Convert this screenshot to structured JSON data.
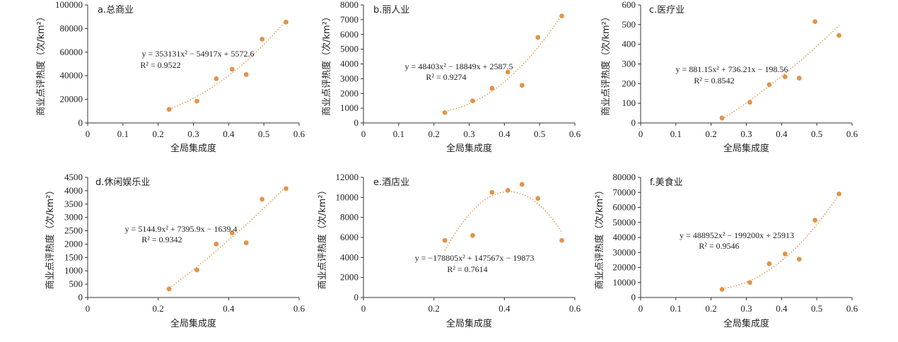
{
  "chart_data": [
    {
      "type": "scatter",
      "title": "a.总商业",
      "xlabel": "全局集成度",
      "ylabel": "商业点评热度（次/km²）",
      "xlim": [
        0,
        0.6
      ],
      "ylim": [
        0,
        100000
      ],
      "xticks": [
        0,
        0.1,
        0.2,
        0.3,
        0.4,
        0.5,
        0.6
      ],
      "xtick_labels": [
        "0",
        "0.1",
        "0.2",
        "0.3",
        "0.4",
        "0.5",
        "0.6"
      ],
      "yticks": [
        0,
        20000,
        40000,
        60000,
        80000,
        100000
      ],
      "ytick_labels": [
        "0",
        "20000",
        "40000",
        "60000",
        "80000",
        "100000"
      ],
      "x": [
        0.231,
        0.31,
        0.365,
        0.41,
        0.45,
        0.495,
        0.563
      ],
      "y": [
        11500,
        18500,
        37500,
        45500,
        41000,
        71000,
        85500
      ],
      "trendline": {
        "type": "poly2",
        "coef": [
          353131,
          -54917,
          5572.6
        ]
      },
      "equation": "y = 353131x² − 54917x + 5572.6",
      "r2_label": "R² = 0.9522"
    },
    {
      "type": "scatter",
      "title": "b.丽人业",
      "xlabel": "全局集成度",
      "ylabel": "商业点评热度（次/km²）",
      "xlim": [
        0,
        0.6
      ],
      "ylim": [
        0,
        8000
      ],
      "xticks": [
        0,
        0.1,
        0.2,
        0.3,
        0.4,
        0.5,
        0.6
      ],
      "xtick_labels": [
        "0",
        "0.1",
        "0.2",
        "0.3",
        "0.4",
        "0.5",
        "0.6"
      ],
      "yticks": [
        0,
        1000,
        2000,
        3000,
        4000,
        5000,
        6000,
        7000,
        8000
      ],
      "ytick_labels": [
        "0",
        "1000",
        "2000",
        "3000",
        "4000",
        "5000",
        "6000",
        "7000",
        "8000"
      ],
      "x": [
        0.231,
        0.31,
        0.365,
        0.41,
        0.45,
        0.495,
        0.563
      ],
      "y": [
        700,
        1500,
        2350,
        3450,
        2550,
        5800,
        7250
      ],
      "trendline": {
        "type": "poly2",
        "coef": [
          48403,
          -18849,
          2587.5
        ]
      },
      "equation": "y = 48403x² − 18849x + 2587.5",
      "r2_label": "R² = 0.9274"
    },
    {
      "type": "scatter",
      "title": "c.医疗业",
      "xlabel": "全局集成度",
      "ylabel": "商业点评热度（次/km²）",
      "xlim": [
        0,
        0.6
      ],
      "ylim": [
        0,
        600
      ],
      "xticks": [
        0,
        0.1,
        0.2,
        0.3,
        0.4,
        0.5,
        0.6
      ],
      "xtick_labels": [
        "0",
        "0.1",
        "0.2",
        "0.3",
        "0.4",
        "0.5",
        "0.6"
      ],
      "yticks": [
        0,
        100,
        200,
        300,
        400,
        500,
        600
      ],
      "ytick_labels": [
        "0",
        "100",
        "200",
        "300",
        "400",
        "500",
        "600"
      ],
      "x": [
        0.231,
        0.31,
        0.365,
        0.41,
        0.45,
        0.495,
        0.563
      ],
      "y": [
        25,
        105,
        195,
        235,
        228,
        515,
        445
      ],
      "trendline": {
        "type": "poly2",
        "coef": [
          881.15,
          736.21,
          -198.56
        ]
      },
      "equation": "y = 881.15x² + 736.21x − 198.56",
      "r2_label": "R² = 0.8542"
    },
    {
      "type": "scatter",
      "title": "d.休闲娱乐业",
      "xlabel": "全局集成度",
      "ylabel": "商业点评热度（次/km²）",
      "xlim": [
        0,
        0.6
      ],
      "ylim": [
        0,
        4500
      ],
      "xticks": [
        0,
        0.2,
        0.4,
        0.6
      ],
      "xtick_labels": [
        "0",
        "0.2",
        "0.4",
        "0.6"
      ],
      "yticks": [
        0,
        500,
        1000,
        1500,
        2000,
        2500,
        3000,
        3500,
        4000,
        4500
      ],
      "ytick_labels": [
        "0",
        "500",
        "1000",
        "1500",
        "2000",
        "2500",
        "3000",
        "3500",
        "4000",
        "4500"
      ],
      "x": [
        0.231,
        0.31,
        0.365,
        0.41,
        0.45,
        0.495,
        0.563
      ],
      "y": [
        320,
        1030,
        2000,
        2420,
        2050,
        3680,
        4080
      ],
      "trendline": {
        "type": "poly2",
        "coef": [
          5144.9,
          7395.9,
          -1639.4
        ]
      },
      "equation": "y = 5144.9x² + 7395.9x − 1639.4",
      "r2_label": "R² = 0.9342"
    },
    {
      "type": "scatter",
      "title": "e.酒店业",
      "xlabel": "全局集成度",
      "ylabel": "商业点评热度（次/km²）",
      "xlim": [
        0,
        0.6
      ],
      "ylim": [
        0,
        12000
      ],
      "xticks": [
        0,
        0.2,
        0.4,
        0.6
      ],
      "xtick_labels": [
        "0",
        "0.2",
        "0.4",
        "0.6"
      ],
      "yticks": [
        0,
        2000,
        4000,
        6000,
        8000,
        10000,
        12000
      ],
      "ytick_labels": [
        "0",
        "2000",
        "4000",
        "6000",
        "8000",
        "10000",
        "12000"
      ],
      "x": [
        0.231,
        0.31,
        0.365,
        0.41,
        0.45,
        0.495,
        0.563
      ],
      "y": [
        5700,
        6200,
        10500,
        10700,
        11300,
        9900,
        5700
      ],
      "trendline": {
        "type": "poly2",
        "coef": [
          -178805,
          147567,
          -19873
        ]
      },
      "equation": "y = −178805x² + 147567x − 19873",
      "r2_label": "R² = 0.7614"
    },
    {
      "type": "scatter",
      "title": "f.美食业",
      "xlabel": "全局集成度",
      "ylabel": "商业点评热度（次/km²）",
      "xlim": [
        0,
        0.6
      ],
      "ylim": [
        0,
        80000
      ],
      "xticks": [
        0,
        0.1,
        0.2,
        0.3,
        0.4,
        0.5,
        0.6
      ],
      "xtick_labels": [
        "0",
        "0.1",
        "0.2",
        "0.3",
        "0.4",
        "0.5",
        "0.6"
      ],
      "yticks": [
        0,
        10000,
        20000,
        30000,
        40000,
        50000,
        60000,
        70000,
        80000
      ],
      "ytick_labels": [
        "0",
        "10000",
        "20000",
        "30000",
        "40000",
        "50000",
        "60000",
        "70000",
        "80000"
      ],
      "x": [
        0.231,
        0.31,
        0.365,
        0.41,
        0.45,
        0.495,
        0.563
      ],
      "y": [
        5400,
        10000,
        22500,
        29000,
        25500,
        51500,
        69000
      ],
      "trendline": {
        "type": "poly2",
        "coef": [
          488952,
          -199200,
          25913
        ]
      },
      "equation": "y = 488952x² − 199200x + 25913",
      "r2_label": "R² = 0.9546"
    }
  ],
  "colors": {
    "marker": "#e0944a",
    "trendline": "#e0944a",
    "axis": "#333333"
  }
}
